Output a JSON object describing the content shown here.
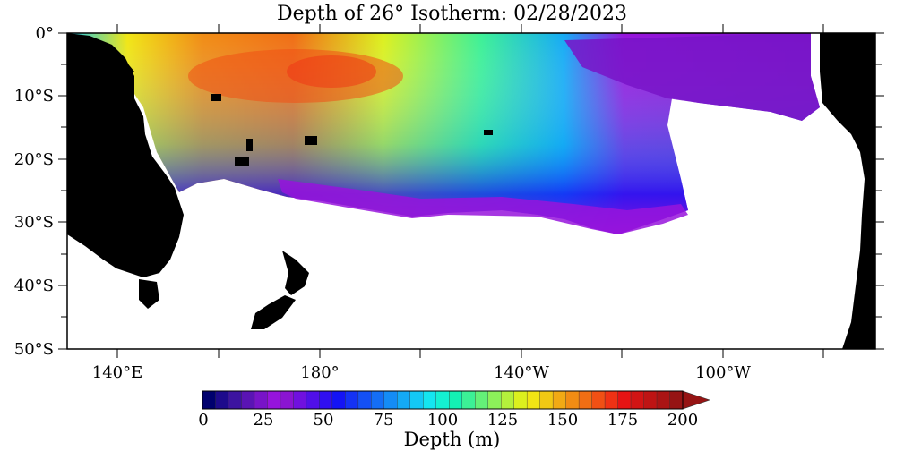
{
  "title": "Depth of 26° Isotherm: 02/28/2023",
  "y_axis_labels": [
    "0°",
    "10°S",
    "20°S",
    "30°S",
    "40°S",
    "50°S"
  ],
  "x_axis_labels": [
    "140°E",
    "180°",
    "140°W",
    "100°W"
  ],
  "colorbar": {
    "ticks": [
      "0",
      "25",
      "50",
      "75",
      "100",
      "125",
      "150",
      "175",
      "200"
    ],
    "title": "Depth (m)",
    "min": 0,
    "max": 200,
    "colors": [
      "#00006e",
      "#1e0a8c",
      "#3c14a0",
      "#5a14b4",
      "#7814c8",
      "#9614dc",
      "#8a14d2",
      "#7010e0",
      "#5010e8",
      "#3010f0",
      "#1414f5",
      "#1432f5",
      "#1450f5",
      "#146ef5",
      "#148cf5",
      "#14aaf5",
      "#14c8f5",
      "#14e6f0",
      "#14f0d2",
      "#14f0b4",
      "#3cf096",
      "#64f078",
      "#8cf05a",
      "#b4f03c",
      "#dcf01e",
      "#f0e614",
      "#f0c814",
      "#f0aa14",
      "#f08c14",
      "#f06e14",
      "#f05014",
      "#f03214",
      "#e61414",
      "#d21414",
      "#be1414",
      "#aa1414",
      "#961414"
    ]
  },
  "map": {
    "lon_range": [
      "130°E",
      "70°W"
    ],
    "lat_range": [
      "0°",
      "50°S"
    ],
    "land_color": "#000000",
    "ocean_background": "#ffffff"
  }
}
